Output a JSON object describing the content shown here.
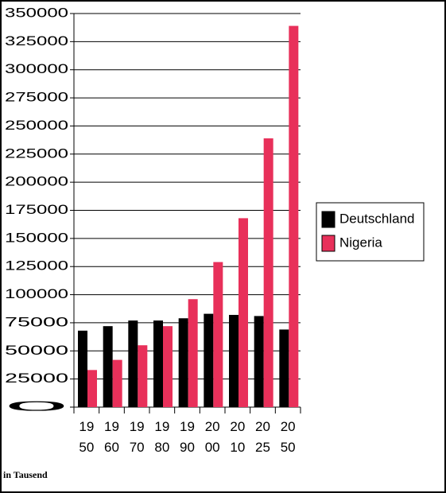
{
  "chart_data": {
    "type": "bar",
    "categories": [
      "1950",
      "1960",
      "1970",
      "1980",
      "1990",
      "2000",
      "2010",
      "2025",
      "2050"
    ],
    "series": [
      {
        "name": "Deutschland",
        "color": "#000000",
        "values": [
          68000,
          72000,
          77000,
          77000,
          79000,
          83000,
          82000,
          81000,
          69000
        ]
      },
      {
        "name": "Nigeria",
        "color": "#e8305a",
        "values": [
          33000,
          42000,
          55000,
          72000,
          96000,
          129000,
          168000,
          239000,
          339000
        ]
      }
    ],
    "ylim": [
      0,
      350000
    ],
    "yticks": [
      0,
      25000,
      50000,
      75000,
      100000,
      125000,
      150000,
      175000,
      200000,
      225000,
      250000,
      275000,
      300000,
      325000,
      350000
    ],
    "grid": true,
    "legend": "right",
    "note": "in Tausend"
  }
}
